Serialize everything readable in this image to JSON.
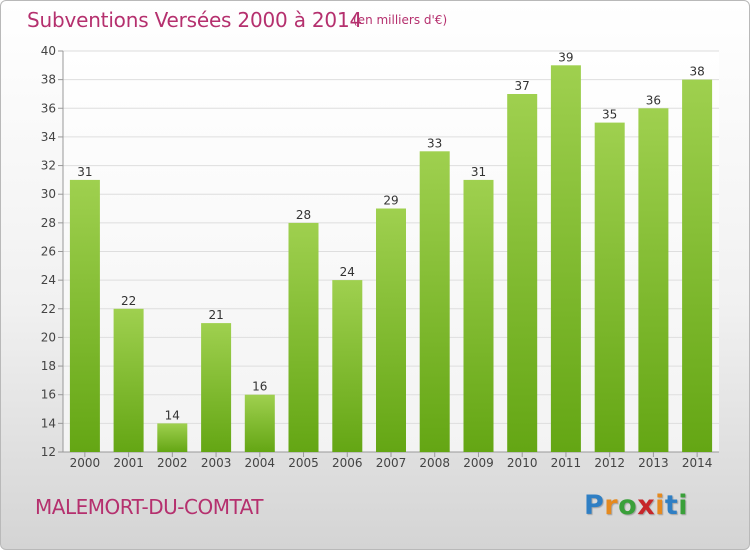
{
  "header": {
    "title": "Subventions Versées 2000 à 2014",
    "unit_note": "(en milliers d'€)"
  },
  "footer": {
    "place": "MALEMORT-DU-COMTAT",
    "brand": {
      "letters": [
        "P",
        "r",
        "o",
        "x",
        "i",
        "t",
        "i"
      ],
      "colors": [
        "#2f7fc4",
        "#e58a1f",
        "#3aa03a",
        "#c7262a",
        "#e58a1f",
        "#2f7fc4",
        "#3aa03a"
      ]
    }
  },
  "chart_data": {
    "type": "bar",
    "categories": [
      "2000",
      "2001",
      "2002",
      "2003",
      "2004",
      "2005",
      "2006",
      "2007",
      "2008",
      "2009",
      "2010",
      "2011",
      "2012",
      "2013",
      "2014"
    ],
    "values": [
      31,
      22,
      14,
      21,
      16,
      28,
      24,
      29,
      33,
      31,
      37,
      39,
      35,
      36,
      38
    ],
    "ylim": [
      12,
      40
    ],
    "yticks": [
      12,
      14,
      16,
      18,
      20,
      22,
      24,
      26,
      28,
      30,
      32,
      34,
      36,
      38,
      40
    ],
    "grid": true,
    "bar_color": "#8cc63f",
    "data_labels": true
  }
}
